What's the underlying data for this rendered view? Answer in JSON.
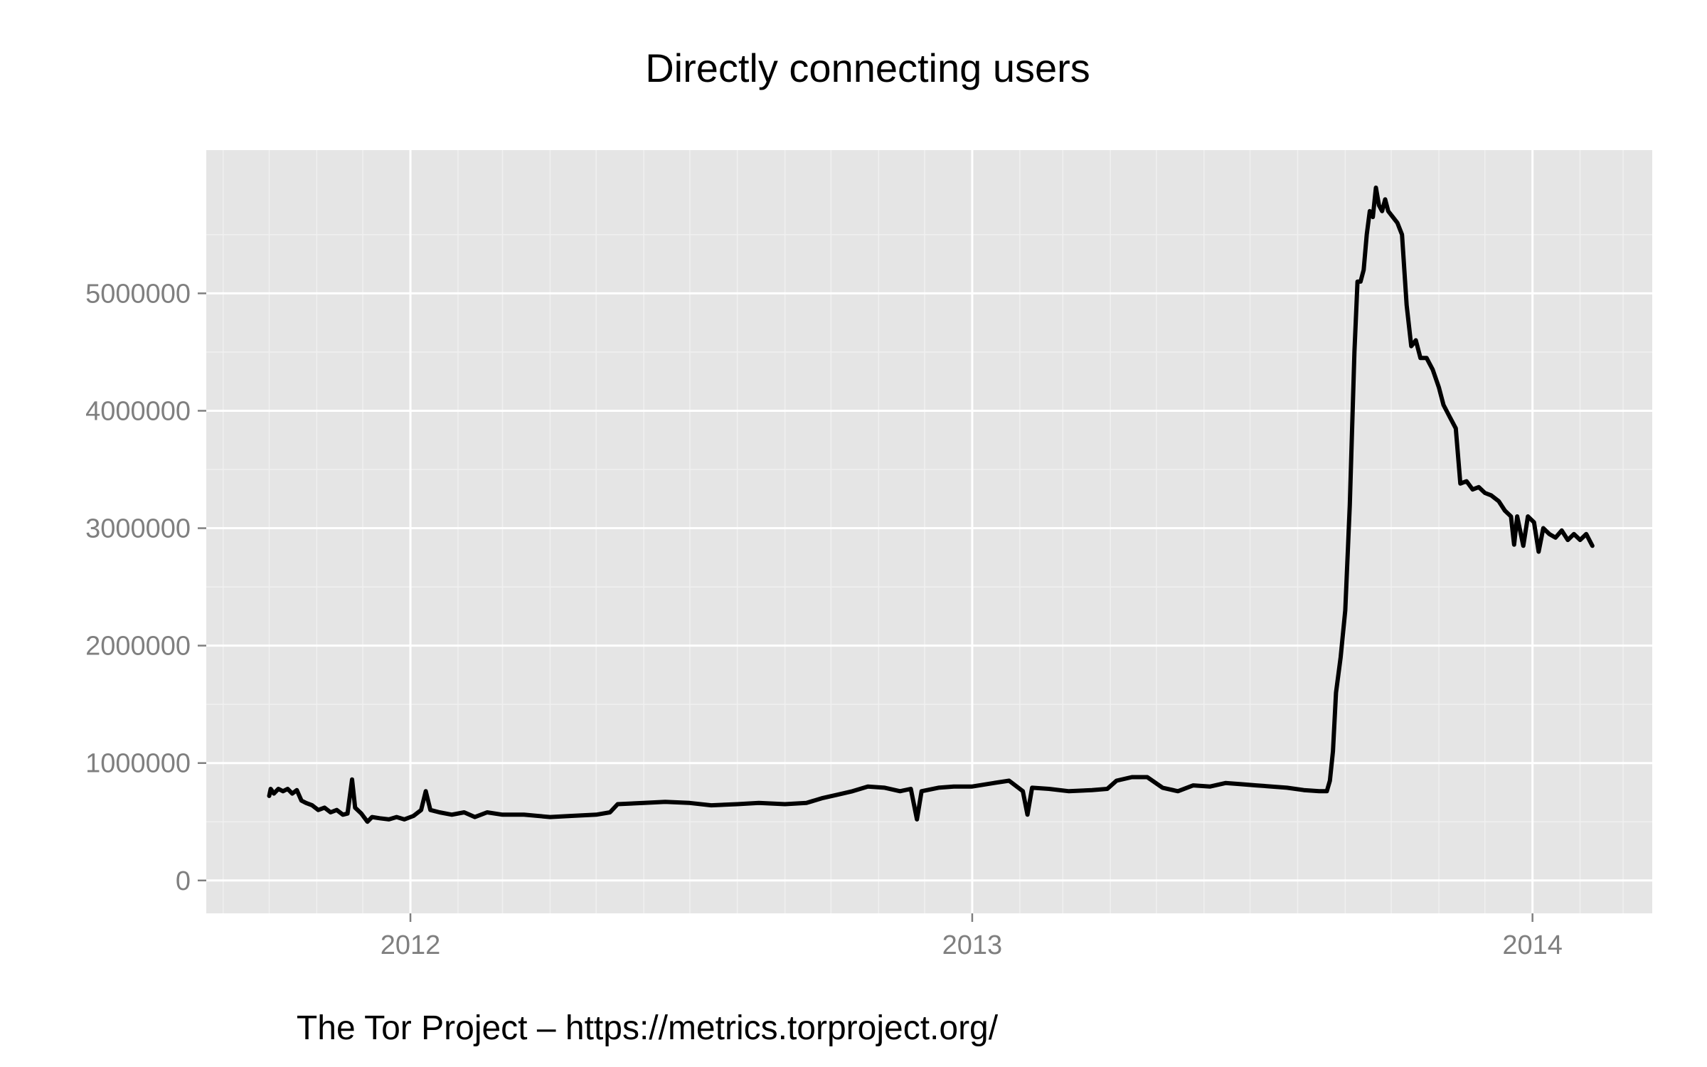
{
  "chart_data": {
    "type": "line",
    "title": "Directly connecting users",
    "caption": "The Tor Project – https://metrics.torproject.org/",
    "xlabel": "",
    "ylabel": "",
    "x_ticks": [
      "2012",
      "2013",
      "2014"
    ],
    "y_ticks": [
      "0",
      "1000000",
      "2000000",
      "3000000",
      "4000000",
      "5000000"
    ],
    "xlim": [
      "2011-08-21",
      "2014-03-20"
    ],
    "ylim": [
      -280000,
      6220000
    ],
    "grid": true,
    "legend": "none",
    "colors": {
      "panel": "#e5e5e5",
      "grid_major": "#ffffff",
      "grid_minor": "#f0f0f0",
      "line": "#000000"
    },
    "series": [
      {
        "points": [
          [
            "2011-10-01",
            720000
          ],
          [
            "2011-10-02",
            780000
          ],
          [
            "2011-10-04",
            740000
          ],
          [
            "2011-10-07",
            780000
          ],
          [
            "2011-10-10",
            760000
          ],
          [
            "2011-10-13",
            780000
          ],
          [
            "2011-10-16",
            740000
          ],
          [
            "2011-10-19",
            770000
          ],
          [
            "2011-10-22",
            680000
          ],
          [
            "2011-10-25",
            660000
          ],
          [
            "2011-10-29",
            640000
          ],
          [
            "2011-11-02",
            600000
          ],
          [
            "2011-11-06",
            620000
          ],
          [
            "2011-11-10",
            580000
          ],
          [
            "2011-11-14",
            600000
          ],
          [
            "2011-11-18",
            560000
          ],
          [
            "2011-11-21",
            570000
          ],
          [
            "2011-11-24",
            860000
          ],
          [
            "2011-11-26",
            620000
          ],
          [
            "2011-11-30",
            570000
          ],
          [
            "2011-12-04",
            500000
          ],
          [
            "2011-12-07",
            540000
          ],
          [
            "2011-12-12",
            530000
          ],
          [
            "2011-12-18",
            520000
          ],
          [
            "2011-12-23",
            540000
          ],
          [
            "2011-12-28",
            520000
          ],
          [
            "2012-01-03",
            550000
          ],
          [
            "2012-01-08",
            600000
          ],
          [
            "2012-01-11",
            760000
          ],
          [
            "2012-01-14",
            600000
          ],
          [
            "2012-01-20",
            580000
          ],
          [
            "2012-01-28",
            560000
          ],
          [
            "2012-02-05",
            580000
          ],
          [
            "2012-02-12",
            540000
          ],
          [
            "2012-02-20",
            580000
          ],
          [
            "2012-03-01",
            560000
          ],
          [
            "2012-03-15",
            560000
          ],
          [
            "2012-04-01",
            540000
          ],
          [
            "2012-04-15",
            550000
          ],
          [
            "2012-05-01",
            560000
          ],
          [
            "2012-05-10",
            580000
          ],
          [
            "2012-05-15",
            650000
          ],
          [
            "2012-06-01",
            660000
          ],
          [
            "2012-06-15",
            670000
          ],
          [
            "2012-07-01",
            660000
          ],
          [
            "2012-07-15",
            640000
          ],
          [
            "2012-08-01",
            650000
          ],
          [
            "2012-08-15",
            660000
          ],
          [
            "2012-09-01",
            650000
          ],
          [
            "2012-09-15",
            660000
          ],
          [
            "2012-09-25",
            700000
          ],
          [
            "2012-10-05",
            730000
          ],
          [
            "2012-10-15",
            760000
          ],
          [
            "2012-10-25",
            800000
          ],
          [
            "2012-11-05",
            790000
          ],
          [
            "2012-11-15",
            760000
          ],
          [
            "2012-11-22",
            780000
          ],
          [
            "2012-11-26",
            520000
          ],
          [
            "2012-11-29",
            760000
          ],
          [
            "2012-12-10",
            790000
          ],
          [
            "2012-12-20",
            800000
          ],
          [
            "2013-01-01",
            800000
          ],
          [
            "2013-01-15",
            830000
          ],
          [
            "2013-01-25",
            850000
          ],
          [
            "2013-02-03",
            760000
          ],
          [
            "2013-02-06",
            560000
          ],
          [
            "2013-02-09",
            790000
          ],
          [
            "2013-02-20",
            780000
          ],
          [
            "2013-03-05",
            760000
          ],
          [
            "2013-03-20",
            770000
          ],
          [
            "2013-03-30",
            780000
          ],
          [
            "2013-04-05",
            850000
          ],
          [
            "2013-04-15",
            880000
          ],
          [
            "2013-04-25",
            880000
          ],
          [
            "2013-05-05",
            790000
          ],
          [
            "2013-05-15",
            760000
          ],
          [
            "2013-05-25",
            810000
          ],
          [
            "2013-06-05",
            800000
          ],
          [
            "2013-06-15",
            830000
          ],
          [
            "2013-06-25",
            820000
          ],
          [
            "2013-07-05",
            810000
          ],
          [
            "2013-07-15",
            800000
          ],
          [
            "2013-07-25",
            790000
          ],
          [
            "2013-08-05",
            770000
          ],
          [
            "2013-08-15",
            760000
          ],
          [
            "2013-08-20",
            760000
          ],
          [
            "2013-08-22",
            850000
          ],
          [
            "2013-08-24",
            1100000
          ],
          [
            "2013-08-26",
            1600000
          ],
          [
            "2013-08-29",
            1900000
          ],
          [
            "2013-09-01",
            2300000
          ],
          [
            "2013-09-04",
            3200000
          ],
          [
            "2013-09-07",
            4500000
          ],
          [
            "2013-09-09",
            5100000
          ],
          [
            "2013-09-11",
            5100000
          ],
          [
            "2013-09-13",
            5200000
          ],
          [
            "2013-09-15",
            5500000
          ],
          [
            "2013-09-17",
            5700000
          ],
          [
            "2013-09-19",
            5650000
          ],
          [
            "2013-09-21",
            5900000
          ],
          [
            "2013-09-23",
            5750000
          ],
          [
            "2013-09-25",
            5700000
          ],
          [
            "2013-09-27",
            5800000
          ],
          [
            "2013-09-29",
            5700000
          ],
          [
            "2013-10-02",
            5650000
          ],
          [
            "2013-10-05",
            5600000
          ],
          [
            "2013-10-08",
            5500000
          ],
          [
            "2013-10-11",
            4900000
          ],
          [
            "2013-10-14",
            4550000
          ],
          [
            "2013-10-17",
            4600000
          ],
          [
            "2013-10-20",
            4450000
          ],
          [
            "2013-10-24",
            4450000
          ],
          [
            "2013-10-28",
            4350000
          ],
          [
            "2013-11-01",
            4200000
          ],
          [
            "2013-11-04",
            4050000
          ],
          [
            "2013-11-08",
            3950000
          ],
          [
            "2013-11-12",
            3850000
          ],
          [
            "2013-11-15",
            3380000
          ],
          [
            "2013-11-19",
            3400000
          ],
          [
            "2013-11-23",
            3330000
          ],
          [
            "2013-11-27",
            3350000
          ],
          [
            "2013-12-01",
            3300000
          ],
          [
            "2013-12-05",
            3280000
          ],
          [
            "2013-12-10",
            3230000
          ],
          [
            "2013-12-14",
            3150000
          ],
          [
            "2013-12-18",
            3100000
          ],
          [
            "2013-12-20",
            2860000
          ],
          [
            "2013-12-22",
            3100000
          ],
          [
            "2013-12-26",
            2850000
          ],
          [
            "2013-12-29",
            3100000
          ],
          [
            "2014-01-02",
            3050000
          ],
          [
            "2014-01-05",
            2800000
          ],
          [
            "2014-01-08",
            3000000
          ],
          [
            "2014-01-12",
            2950000
          ],
          [
            "2014-01-16",
            2920000
          ],
          [
            "2014-01-20",
            2980000
          ],
          [
            "2014-01-24",
            2900000
          ],
          [
            "2014-01-28",
            2950000
          ],
          [
            "2014-02-01",
            2900000
          ],
          [
            "2014-02-05",
            2950000
          ],
          [
            "2014-02-09",
            2850000
          ]
        ]
      }
    ]
  }
}
